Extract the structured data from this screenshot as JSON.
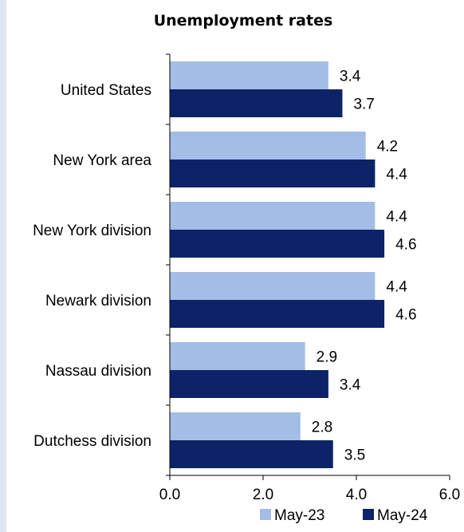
{
  "chart_data": {
    "type": "bar",
    "orientation": "horizontal",
    "title": "Unemployment rates",
    "categories": [
      "United States",
      "New York area",
      "New York division",
      "Newark division",
      "Nassau division",
      "Dutchess division"
    ],
    "series": [
      {
        "name": "May-23",
        "values": [
          3.4,
          4.2,
          4.4,
          4.4,
          2.9,
          2.8
        ],
        "labels": [
          "3.4",
          "4.2",
          "4.4",
          "4.4",
          "2.9",
          "2.8"
        ],
        "color": "#a3bde6"
      },
      {
        "name": "May-24",
        "values": [
          3.7,
          4.4,
          4.6,
          4.6,
          3.4,
          3.5
        ],
        "labels": [
          "3.7",
          "4.4",
          "4.6",
          "4.6",
          "3.4",
          "3.5"
        ],
        "color": "#0c2467"
      }
    ],
    "xlim": [
      0,
      6
    ],
    "xticks": [
      "0.0",
      "2.0",
      "4.0",
      "6.0"
    ],
    "xtick_values": [
      0,
      2,
      4,
      6
    ],
    "grid": false,
    "legend": "bottom-right"
  }
}
